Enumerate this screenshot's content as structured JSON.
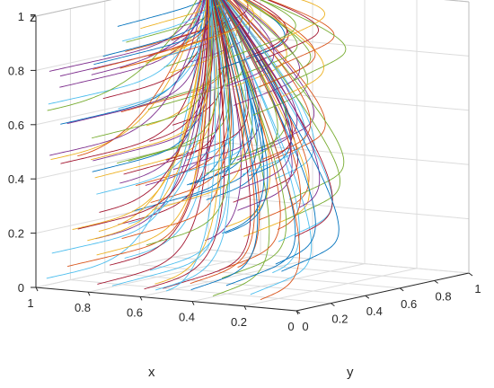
{
  "chart_data": {
    "type": "line",
    "projection": "3d",
    "xlabel": "x",
    "ylabel": "y",
    "zlabel": "z",
    "xlim": [
      0,
      1
    ],
    "ylim": [
      0,
      1
    ],
    "zlim": [
      0,
      1
    ],
    "x_ticks": [
      "0",
      "0.2",
      "0.4",
      "0.6",
      "0.8",
      "1"
    ],
    "y_ticks": [
      "0",
      "0.2",
      "0.4",
      "0.6",
      "0.8",
      "1"
    ],
    "z_ticks": [
      "0",
      "0.2",
      "0.4",
      "0.6",
      "0.8",
      "1"
    ],
    "grid": true,
    "box": true,
    "colors": [
      "#0072BD",
      "#D95319",
      "#EDB120",
      "#7E2F8E",
      "#77AC30",
      "#4DBEEE",
      "#A2142F"
    ],
    "series_description": "Many trajectories starting from initial points spread over the x-z plane (y near 0) and all converging to the point (1, 1, 1)",
    "convergence_point": [
      1,
      1,
      1
    ],
    "trajectory_count": 140
  }
}
